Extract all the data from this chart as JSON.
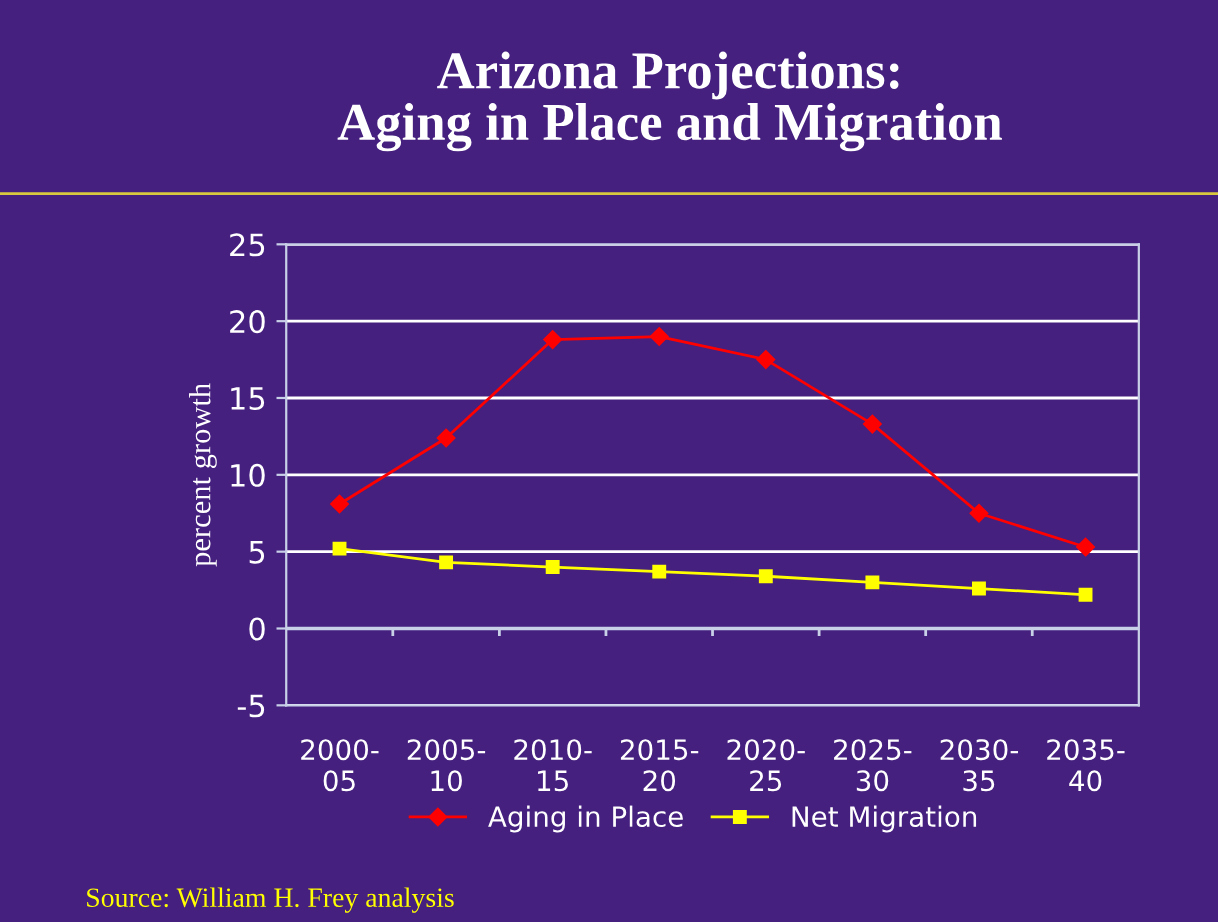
{
  "chart_data": {
    "type": "line",
    "title": "Arizona Projections:\nAging in Place and Migration",
    "ylabel": "percent growth",
    "categories": [
      "2000-\n05",
      "2005-\n10",
      "2010-\n15",
      "2015-\n20",
      "2020-\n25",
      "2025-\n30",
      "2030-\n35",
      "2035-\n40"
    ],
    "series": [
      {
        "name": "Aging in Place",
        "color": "#ff0000",
        "marker": "diamond",
        "values": [
          8.1,
          12.4,
          18.8,
          19.0,
          17.5,
          13.3,
          7.5,
          5.3
        ]
      },
      {
        "name": "Net Migration",
        "color": "#ffff00",
        "marker": "square",
        "values": [
          5.2,
          4.3,
          4.0,
          3.7,
          3.4,
          3.0,
          2.6,
          2.2
        ]
      }
    ],
    "ylim": [
      -5,
      25
    ],
    "yticks": [
      -5,
      0,
      5,
      10,
      15,
      20,
      25
    ],
    "grid": "y",
    "legend": "bottom",
    "annotations": [
      "Source: William H. Frey analysis"
    ]
  }
}
